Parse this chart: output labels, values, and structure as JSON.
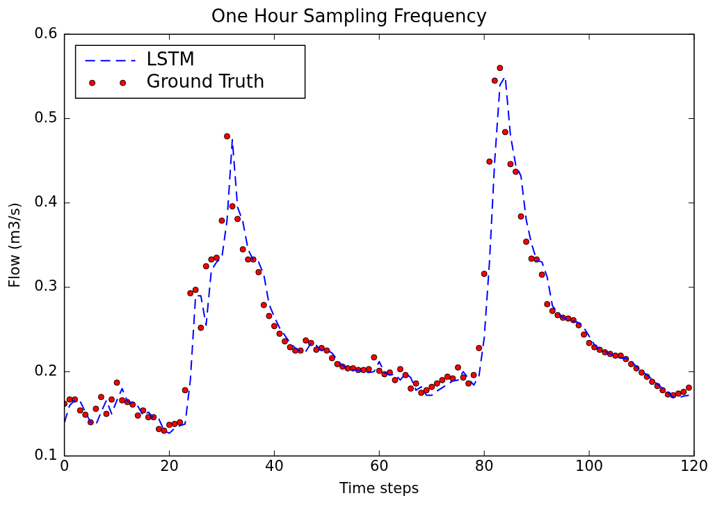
{
  "chart_data": {
    "type": "line",
    "title": "One Hour Sampling Frequency",
    "xlabel": "Time steps",
    "ylabel": "Flow (m3/s)",
    "x": [
      0,
      1,
      2,
      3,
      4,
      5,
      6,
      7,
      8,
      9,
      10,
      11,
      12,
      13,
      14,
      15,
      16,
      17,
      18,
      19,
      20,
      21,
      22,
      23,
      24,
      25,
      26,
      27,
      28,
      29,
      30,
      31,
      32,
      33,
      34,
      35,
      36,
      37,
      38,
      39,
      40,
      41,
      42,
      43,
      44,
      45,
      46,
      47,
      48,
      49,
      50,
      51,
      52,
      53,
      54,
      55,
      56,
      57,
      58,
      59,
      60,
      61,
      62,
      63,
      64,
      65,
      66,
      67,
      68,
      69,
      70,
      71,
      72,
      73,
      74,
      75,
      76,
      77,
      78,
      79,
      80,
      81,
      82,
      83,
      84,
      85,
      86,
      87,
      88,
      89,
      90,
      91,
      92,
      93,
      94,
      95,
      96,
      97,
      98,
      99,
      100,
      101,
      102,
      103,
      104,
      105,
      106,
      107,
      108,
      109,
      110,
      111,
      112,
      113,
      114,
      115,
      116,
      117,
      118,
      119
    ],
    "xlim": [
      0,
      120
    ],
    "xticks": [
      0,
      20,
      40,
      60,
      80,
      100,
      120
    ],
    "ylim": [
      0.1,
      0.6
    ],
    "yticks": [
      0.1,
      0.2,
      0.3,
      0.4,
      0.5,
      0.6
    ],
    "legend": "top left",
    "grid": false,
    "series": [
      {
        "name": "LSTM",
        "color": "#0000ff",
        "line_style": "dashed",
        "marker": "none",
        "values": [
          0.14,
          0.16,
          0.166,
          0.165,
          0.152,
          0.14,
          0.137,
          0.152,
          0.166,
          0.15,
          0.166,
          0.18,
          0.165,
          0.163,
          0.159,
          0.148,
          0.152,
          0.145,
          0.144,
          0.13,
          0.127,
          0.133,
          0.136,
          0.138,
          0.19,
          0.29,
          0.29,
          0.255,
          0.32,
          0.33,
          0.335,
          0.38,
          0.475,
          0.395,
          0.378,
          0.345,
          0.332,
          0.33,
          0.315,
          0.28,
          0.265,
          0.252,
          0.243,
          0.234,
          0.228,
          0.224,
          0.224,
          0.234,
          0.231,
          0.225,
          0.226,
          0.222,
          0.214,
          0.207,
          0.204,
          0.202,
          0.202,
          0.2,
          0.199,
          0.2,
          0.212,
          0.199,
          0.196,
          0.197,
          0.19,
          0.198,
          0.193,
          0.178,
          0.182,
          0.172,
          0.172,
          0.177,
          0.181,
          0.185,
          0.189,
          0.19,
          0.2,
          0.192,
          0.184,
          0.195,
          0.24,
          0.33,
          0.45,
          0.54,
          0.55,
          0.48,
          0.445,
          0.432,
          0.38,
          0.352,
          0.332,
          0.33,
          0.312,
          0.278,
          0.27,
          0.264,
          0.262,
          0.26,
          0.258,
          0.252,
          0.242,
          0.232,
          0.227,
          0.224,
          0.221,
          0.218,
          0.216,
          0.216,
          0.212,
          0.206,
          0.201,
          0.196,
          0.191,
          0.185,
          0.18,
          0.175,
          0.17,
          0.169,
          0.171,
          0.172
        ]
      },
      {
        "name": "Ground Truth",
        "type": "scatter",
        "color": "#ff0000",
        "marker": "circle",
        "values": [
          0.162,
          0.167,
          0.167,
          0.154,
          0.149,
          0.14,
          0.156,
          0.17,
          0.15,
          0.167,
          0.187,
          0.166,
          0.164,
          0.161,
          0.148,
          0.154,
          0.146,
          0.146,
          0.132,
          0.13,
          0.137,
          0.138,
          0.14,
          0.178,
          0.293,
          0.297,
          0.252,
          0.325,
          0.333,
          0.335,
          0.379,
          0.479,
          0.396,
          0.381,
          0.345,
          0.333,
          0.333,
          0.318,
          0.279,
          0.266,
          0.254,
          0.245,
          0.236,
          0.229,
          0.225,
          0.225,
          0.237,
          0.234,
          0.226,
          0.228,
          0.225,
          0.216,
          0.209,
          0.206,
          0.204,
          0.204,
          0.202,
          0.202,
          0.203,
          0.217,
          0.201,
          0.197,
          0.199,
          0.19,
          0.203,
          0.196,
          0.18,
          0.186,
          0.175,
          0.178,
          0.182,
          0.186,
          0.19,
          0.194,
          0.192,
          0.205,
          0.193,
          0.186,
          0.196,
          0.228,
          0.316,
          0.449,
          0.545,
          0.56,
          0.484,
          0.446,
          0.437,
          0.384,
          0.354,
          0.334,
          0.333,
          0.315,
          0.28,
          0.272,
          0.267,
          0.264,
          0.263,
          0.261,
          0.255,
          0.244,
          0.234,
          0.229,
          0.226,
          0.223,
          0.221,
          0.219,
          0.219,
          0.215,
          0.209,
          0.204,
          0.199,
          0.194,
          0.188,
          0.183,
          0.178,
          0.173,
          0.172,
          0.174,
          0.176,
          0.181
        ]
      }
    ]
  }
}
